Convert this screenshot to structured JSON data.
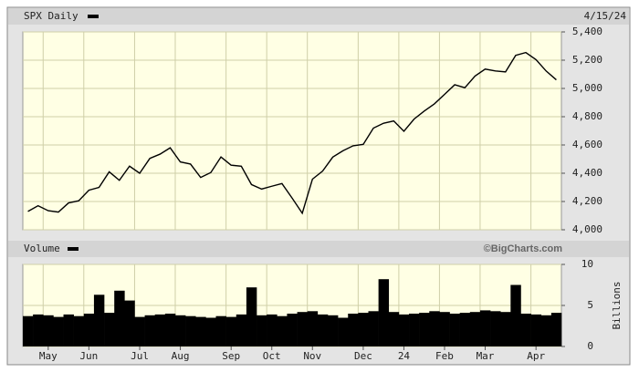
{
  "chart_data": [
    {
      "type": "line",
      "title": "SPX Daily",
      "date_label": "4/15/24",
      "color": "#000000",
      "values": [
        4130,
        4170,
        4135,
        4125,
        4190,
        4205,
        4280,
        4300,
        4410,
        4350,
        4450,
        4400,
        4505,
        4535,
        4580,
        4480,
        4465,
        4370,
        4405,
        4515,
        4457,
        4450,
        4320,
        4288,
        4308,
        4327,
        4224,
        4117,
        4358,
        4415,
        4514,
        4559,
        4594,
        4604,
        4719,
        4754,
        4770,
        4697,
        4783,
        4840,
        4891,
        4958,
        5026,
        5005,
        5088,
        5137,
        5124,
        5117,
        5234,
        5254,
        5204,
        5123,
        5061
      ],
      "ylim": [
        4000,
        5400
      ],
      "yticks": [
        {
          "value": 4000,
          "label": "4,000"
        },
        {
          "value": 4200,
          "label": "4,200"
        },
        {
          "value": 4400,
          "label": "4,400"
        },
        {
          "value": 4600,
          "label": "4,600"
        },
        {
          "value": 4800,
          "label": "4,800"
        },
        {
          "value": 5000,
          "label": "5,000"
        },
        {
          "value": 5200,
          "label": "5,200"
        },
        {
          "value": 5400,
          "label": "5,400"
        }
      ],
      "grid": true
    },
    {
      "type": "bar",
      "title": "Volume",
      "credit": "©BigCharts.com",
      "y_label": "Billions",
      "color": "#000000",
      "categories": [
        null,
        null,
        "May",
        null,
        null,
        null,
        "Jun",
        null,
        null,
        null,
        null,
        "Jul",
        null,
        null,
        null,
        "Aug",
        null,
        null,
        null,
        null,
        "Sep",
        null,
        null,
        null,
        "Oct",
        null,
        null,
        null,
        "Nov",
        null,
        null,
        null,
        null,
        "Dec",
        null,
        null,
        null,
        "24",
        null,
        null,
        null,
        "Feb",
        null,
        null,
        null,
        "Mar",
        null,
        null,
        null,
        null,
        "Apr",
        null,
        null
      ],
      "values": [
        3.7,
        3.9,
        3.8,
        3.6,
        3.9,
        3.7,
        4.0,
        6.3,
        4.1,
        6.8,
        5.6,
        3.6,
        3.8,
        3.9,
        4.0,
        3.8,
        3.7,
        3.6,
        3.5,
        3.7,
        3.6,
        3.9,
        7.2,
        3.8,
        3.9,
        3.7,
        4.0,
        4.2,
        4.3,
        3.9,
        3.8,
        3.5,
        4.0,
        4.1,
        4.3,
        8.2,
        4.2,
        3.9,
        4.0,
        4.1,
        4.3,
        4.2,
        4.0,
        4.1,
        4.2,
        4.4,
        4.3,
        4.2,
        7.5,
        4.0,
        3.9,
        3.8,
        4.1
      ],
      "ylim": [
        0,
        10
      ],
      "yticks": [
        0,
        5,
        10
      ],
      "grid": true
    }
  ]
}
